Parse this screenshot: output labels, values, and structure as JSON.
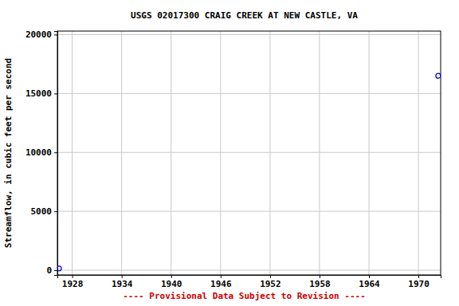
{
  "chart_data": {
    "type": "scatter",
    "title": "USGS 02017300 CRAIG CREEK AT NEW CASTLE, VA",
    "y_label": "Streamflow, in cubic feet per second",
    "annotations": [
      "---- Provisional Data Subject to Revision ----"
    ],
    "x": [
      1926.4,
      1972.4
    ],
    "values": [
      150,
      16500
    ],
    "color": "#0000cc",
    "marker": "circle",
    "xlim": [
      1926.2,
      1972.7
    ],
    "xticks": [
      1928,
      1934,
      1940,
      1946,
      1952,
      1958,
      1964,
      1970
    ],
    "ylim": [
      -400,
      20300
    ],
    "yticks": [
      0,
      5000,
      10000,
      15000,
      20000
    ],
    "grid": true
  }
}
